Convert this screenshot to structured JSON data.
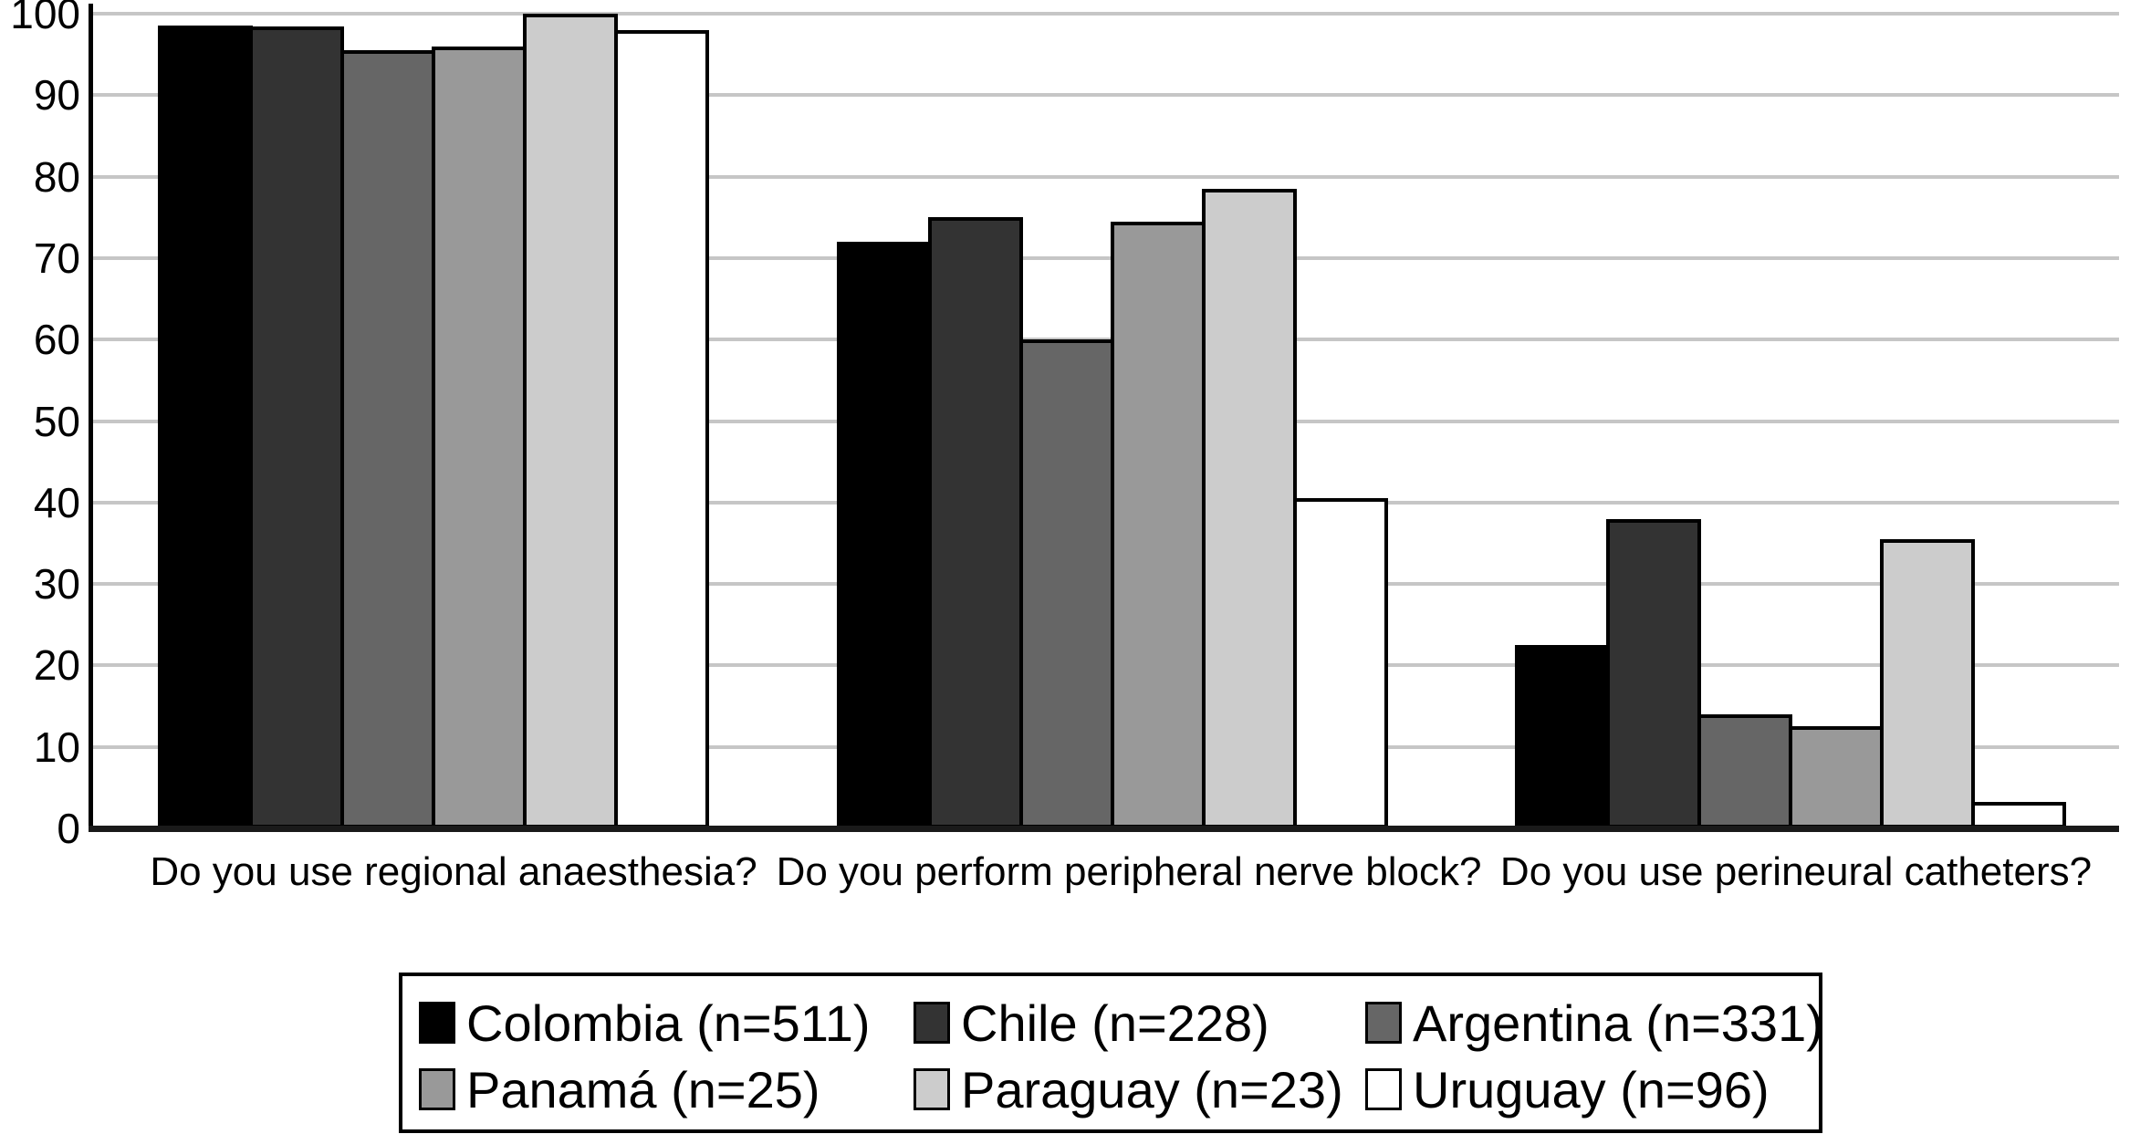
{
  "chart_data": {
    "type": "bar",
    "title": "",
    "categories": [
      "Do you use regional anaesthesia?",
      "Do you perform peripheral nerve block?",
      "Do you use perineural catheters?"
    ],
    "series": [
      {
        "name": "Colombia (n=511)",
        "color": "#000000",
        "values": [
          98.6,
          72.0,
          22.5
        ]
      },
      {
        "name": "Chile (n=228)",
        "color": "#333333",
        "values": [
          98.4,
          75.0,
          38.0
        ]
      },
      {
        "name": "Argentina (n=331)",
        "color": "#666666",
        "values": [
          95.5,
          60.0,
          14.0
        ]
      },
      {
        "name": "Panamá (n=25)",
        "color": "#999999",
        "values": [
          96.0,
          74.5,
          12.5
        ]
      },
      {
        "name": "Paraguay (n=23)",
        "color": "#cccccc",
        "values": [
          100.0,
          78.5,
          35.5
        ]
      },
      {
        "name": "Uruguay (n=96)",
        "color": "#ffffff",
        "values": [
          98.0,
          40.5,
          3.2
        ]
      }
    ],
    "xlabel": "",
    "ylabel": "",
    "ylim": [
      0,
      100
    ],
    "yticks": [
      0,
      10,
      20,
      30,
      40,
      50,
      60,
      70,
      80,
      90,
      100
    ],
    "grid": true,
    "gridline_color": "#c6c6c6",
    "axis_color": "#000000",
    "bar_outline_color": "#000000",
    "legend_position": "bottom"
  }
}
